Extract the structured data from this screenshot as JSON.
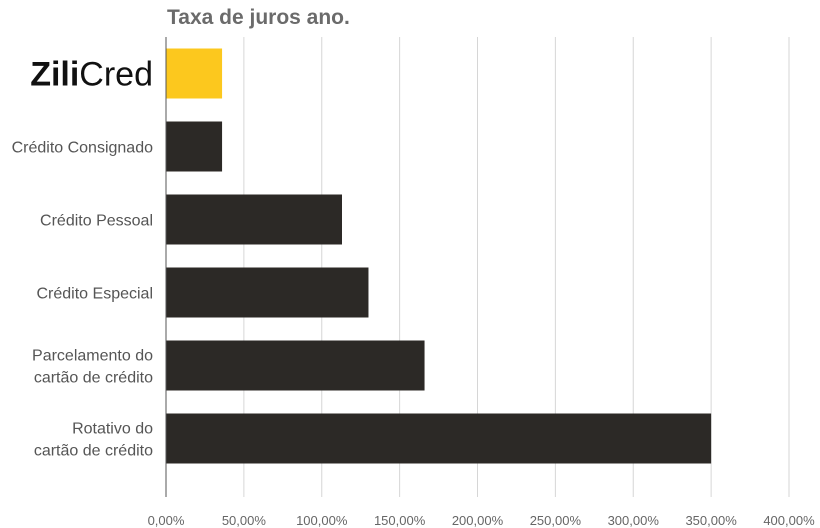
{
  "chart_data": {
    "type": "bar",
    "orientation": "horizontal",
    "title": "Taxa de juros ano.",
    "categories": [
      {
        "lines": [
          "ZiliCred"
        ],
        "is_logo": true
      },
      {
        "lines": [
          "Crédito Consignado"
        ]
      },
      {
        "lines": [
          "Crédito Pessoal"
        ]
      },
      {
        "lines": [
          "Crédito Especial"
        ]
      },
      {
        "lines": [
          "Parcelamento do",
          "cartão de crédito"
        ]
      },
      {
        "lines": [
          "Rotativo do",
          "cartão de crédito"
        ]
      }
    ],
    "logo": {
      "bold_part": "Zili",
      "regular_part": "Cred"
    },
    "values": [
      36,
      36,
      113,
      130,
      166,
      350
    ],
    "bar_colors": [
      "#fcc81e",
      "#2c2926",
      "#2c2926",
      "#2c2926",
      "#2c2926",
      "#2c2926"
    ],
    "xlim": [
      0,
      400
    ],
    "x_ticks": [
      0,
      50,
      100,
      150,
      200,
      250,
      300,
      350,
      400
    ],
    "x_tick_labels": [
      "0,00%",
      "50,00%",
      "100,00%",
      "150,00%",
      "200,00%",
      "250,00%",
      "300,00%",
      "350,00%",
      "400,00%"
    ],
    "grid": true,
    "xlabel": "",
    "ylabel": ""
  }
}
